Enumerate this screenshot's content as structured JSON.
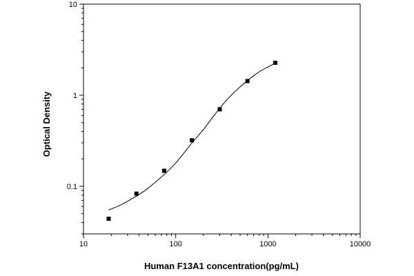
{
  "chart_data": {
    "type": "scatter",
    "xlabel": "Human F13A1 concentration(pg/mL)",
    "ylabel": "Optical Density",
    "xscale": "log",
    "yscale": "log",
    "xlim": [
      10,
      10000
    ],
    "ylim": [
      0.03,
      10
    ],
    "x_ticks": [
      10,
      100,
      1000,
      10000
    ],
    "y_ticks": [
      0.1,
      1,
      10
    ],
    "x_tick_labels": [
      "10",
      "100",
      "1000",
      "10000"
    ],
    "y_tick_labels": [
      "0.1",
      "1",
      "10"
    ],
    "grid": false,
    "legend": "none",
    "series": [
      {
        "kind": "points",
        "marker": "square",
        "color": "#000000",
        "x": [
          18.75,
          37.5,
          75,
          150,
          300,
          600,
          1200
        ],
        "y": [
          0.044,
          0.083,
          0.148,
          0.32,
          0.7,
          1.43,
          2.27
        ]
      },
      {
        "kind": "fitted-curve",
        "color": "#000000",
        "x": [
          18.75,
          25,
          37.5,
          50,
          75,
          100,
          150,
          200,
          300,
          400,
          600,
          800,
          1200
        ],
        "y": [
          0.055,
          0.062,
          0.078,
          0.095,
          0.135,
          0.18,
          0.3,
          0.42,
          0.72,
          1.0,
          1.45,
          1.8,
          2.25
        ]
      }
    ]
  }
}
